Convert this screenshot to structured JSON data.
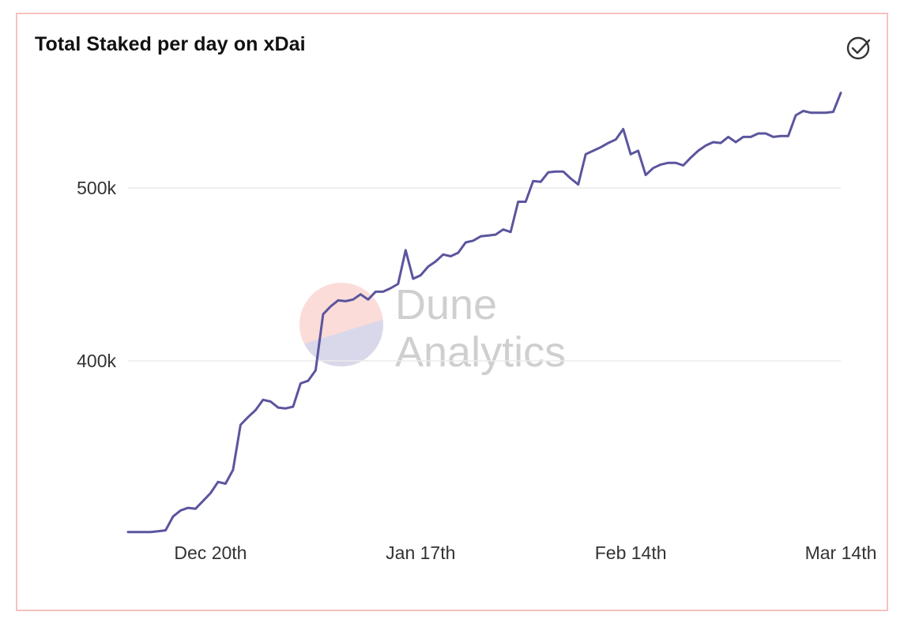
{
  "title": "Total Staked per day on xDai",
  "icons": {
    "check": "check-circle-icon"
  },
  "watermark": {
    "line1": "Dune",
    "line2": "Analytics"
  },
  "colors": {
    "line": "#5b559e",
    "grid": "#ececec",
    "border": "#f7c1bd"
  },
  "chart_data": {
    "type": "line",
    "title": "Total Staked per day on xDai",
    "xlabel": "",
    "ylabel": "",
    "x_start": "2020-12-09",
    "x_step_days": 1,
    "x_ticks": [
      {
        "label": "Dec 20th",
        "date": "2020-12-20"
      },
      {
        "label": "Jan 17th",
        "date": "2021-01-17"
      },
      {
        "label": "Feb 14th",
        "date": "2021-02-14"
      },
      {
        "label": "Mar 14th",
        "date": "2021-03-14"
      }
    ],
    "y_ticks": [
      {
        "label": "400k",
        "value": 400000
      },
      {
        "label": "500k",
        "value": 500000
      }
    ],
    "ylim": [
      301000,
      555000
    ],
    "grid": true,
    "legend": "none",
    "series": [
      {
        "values": [
          301000,
          301000,
          301000,
          301000,
          301500,
          302000,
          310000,
          313500,
          315000,
          314500,
          319000,
          323500,
          330000,
          329000,
          337000,
          363000,
          367500,
          371500,
          377500,
          376500,
          373000,
          372500,
          373500,
          387000,
          388500,
          394500,
          427000,
          431500,
          435000,
          434500,
          435500,
          438500,
          435500,
          440000,
          440000,
          442000,
          444500,
          464000,
          447500,
          449500,
          454500,
          457500,
          461500,
          460500,
          462500,
          468500,
          469500,
          472000,
          472500,
          473000,
          476000,
          474500,
          492000,
          492000,
          504000,
          503500,
          509000,
          509500,
          509500,
          505500,
          502000,
          519500,
          521500,
          523500,
          526000,
          528000,
          534000,
          519500,
          521500,
          507500,
          511500,
          513500,
          514500,
          514500,
          513000,
          517500,
          521500,
          524500,
          526500,
          526000,
          529500,
          526500,
          529500,
          529500,
          531500,
          531500,
          529500,
          530000,
          530000,
          542000,
          544500,
          543500,
          543500,
          543500,
          544000,
          555000
        ]
      }
    ]
  }
}
